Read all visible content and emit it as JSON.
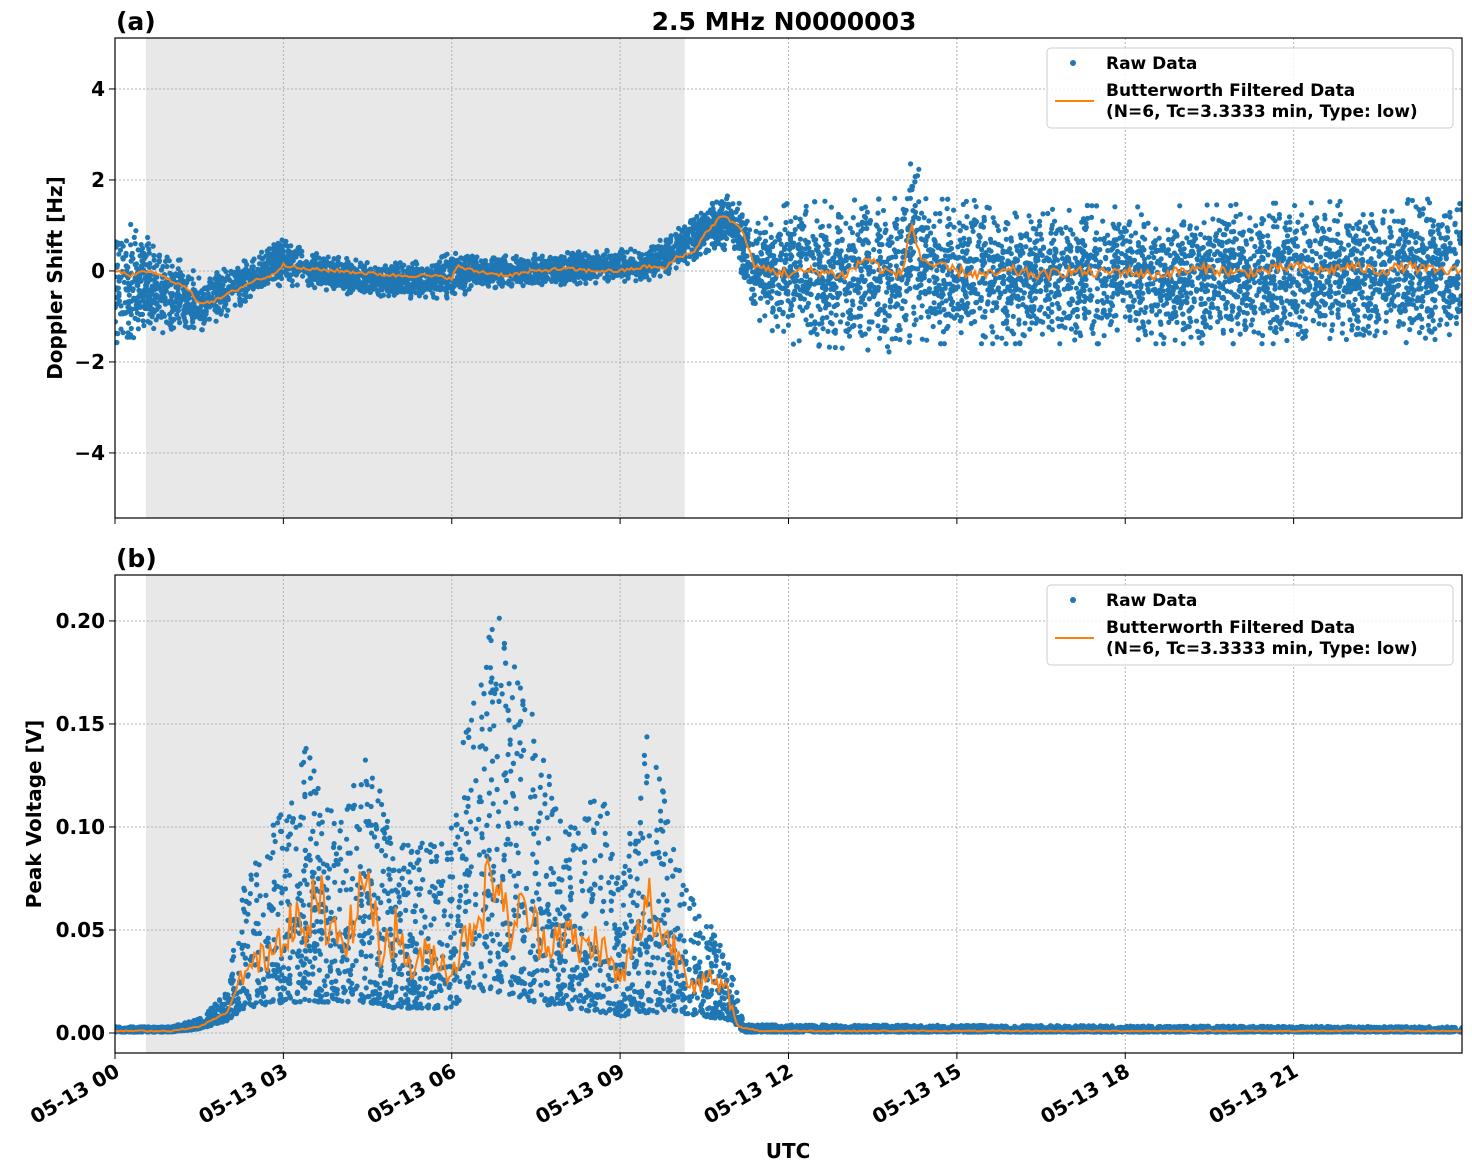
{
  "title": "2.5 MHz N0000003",
  "chart_data": [
    {
      "type": "scatter",
      "panel_label": "(a)",
      "ylabel": "Doppler Shift [Hz]",
      "xlabel": "",
      "xlim_hours_utc": [
        0,
        24
      ],
      "ylim": [
        -5.43,
        5.12
      ],
      "yticks": [
        4,
        2,
        0,
        -2,
        -4
      ],
      "ytick_labels": [
        "4",
        "2",
        "0",
        "−2",
        "−4"
      ],
      "grid": true,
      "night_shading_utc_hours": [
        0.55,
        10.15
      ],
      "legend_position": "top-right",
      "legend": [
        "Raw Data",
        "Butterworth Filtered Data",
        "(N=6, Tc=3.3333 min, Type: low)"
      ],
      "colors": {
        "raw": "#1f77b4",
        "filtered": "#ff7f0e",
        "shade": "#e8e8e8"
      },
      "filtered": [
        [
          0,
          0
        ],
        [
          0.3,
          -0.1
        ],
        [
          0.6,
          0.0
        ],
        [
          1.0,
          -0.2
        ],
        [
          1.3,
          -0.4
        ],
        [
          1.5,
          -0.7
        ],
        [
          1.8,
          -0.65
        ],
        [
          2.1,
          -0.45
        ],
        [
          2.5,
          -0.2
        ],
        [
          2.8,
          -0.1
        ],
        [
          3.0,
          0.15
        ],
        [
          3.3,
          0.05
        ],
        [
          4.0,
          0.0
        ],
        [
          4.5,
          -0.05
        ],
        [
          5.0,
          -0.1
        ],
        [
          5.5,
          -0.1
        ],
        [
          6.0,
          -0.15
        ],
        [
          6.1,
          0.1
        ],
        [
          6.4,
          0.0
        ],
        [
          7.0,
          -0.1
        ],
        [
          7.5,
          0.0
        ],
        [
          8.0,
          0.05
        ],
        [
          8.5,
          0.0
        ],
        [
          9.0,
          0.0
        ],
        [
          9.5,
          0.1
        ],
        [
          9.8,
          0.05
        ],
        [
          10.0,
          0.3
        ],
        [
          10.3,
          0.4
        ],
        [
          10.5,
          0.8
        ],
        [
          10.8,
          1.2
        ],
        [
          11.0,
          1.1
        ],
        [
          11.1,
          1.0
        ],
        [
          11.2,
          0.8
        ],
        [
          11.4,
          0.1
        ],
        [
          11.7,
          0.0
        ],
        [
          12.0,
          -0.05
        ],
        [
          12.5,
          0.0
        ],
        [
          13.0,
          -0.1
        ],
        [
          13.4,
          0.3
        ],
        [
          13.7,
          0.0
        ],
        [
          14.0,
          -0.1
        ],
        [
          14.2,
          1.0
        ],
        [
          14.35,
          0.3
        ],
        [
          14.6,
          0.1
        ],
        [
          15.0,
          0.0
        ],
        [
          15.5,
          -0.1
        ],
        [
          16.0,
          0.0
        ],
        [
          16.5,
          -0.1
        ],
        [
          17.0,
          0.0
        ],
        [
          17.5,
          -0.05
        ],
        [
          18.0,
          0.0
        ],
        [
          18.5,
          -0.1
        ],
        [
          19.0,
          0.0
        ],
        [
          19.5,
          0.05
        ],
        [
          20.0,
          -0.05
        ],
        [
          20.5,
          0.0
        ],
        [
          21.0,
          0.1
        ],
        [
          21.5,
          0.0
        ],
        [
          22.0,
          0.1
        ],
        [
          22.5,
          0.0
        ],
        [
          23.0,
          0.1
        ],
        [
          23.5,
          0.0
        ],
        [
          24.0,
          0.0
        ]
      ],
      "raw_envelope": [
        [
          0,
          -1.8,
          1.3
        ],
        [
          0.5,
          -1.3,
          0.8
        ],
        [
          1.0,
          -1.5,
          0.4
        ],
        [
          1.5,
          -1.4,
          -0.1
        ],
        [
          2.0,
          -1.0,
          0.1
        ],
        [
          2.5,
          -0.5,
          0.3
        ],
        [
          3.0,
          -0.3,
          0.8
        ],
        [
          3.5,
          -0.4,
          0.4
        ],
        [
          4.5,
          -0.6,
          0.2
        ],
        [
          5.5,
          -0.6,
          0.2
        ],
        [
          6.0,
          -0.6,
          0.4
        ],
        [
          6.5,
          -0.4,
          0.3
        ],
        [
          8.0,
          -0.3,
          0.4
        ],
        [
          9.5,
          -0.2,
          0.5
        ],
        [
          10.0,
          0.0,
          0.9
        ],
        [
          10.5,
          0.4,
          1.4
        ],
        [
          11.0,
          0.5,
          1.7
        ],
        [
          11.4,
          -1.0,
          1.0
        ],
        [
          12.0,
          -1.6,
          1.5
        ],
        [
          14.0,
          -1.8,
          1.6
        ],
        [
          14.2,
          -1.5,
          2.8
        ],
        [
          14.5,
          -1.6,
          1.6
        ],
        [
          18.0,
          -1.6,
          1.4
        ],
        [
          24.0,
          -1.6,
          1.6
        ]
      ]
    },
    {
      "type": "scatter",
      "panel_label": "(b)",
      "ylabel": "Peak Voltage [V]",
      "xlabel": "UTC",
      "xlim_hours_utc": [
        0,
        24
      ],
      "ylim": [
        -0.0097,
        0.2223
      ],
      "yticks": [
        0.2,
        0.15,
        0.1,
        0.05,
        0.0
      ],
      "ytick_labels": [
        "0.20",
        "0.15",
        "0.10",
        "0.05",
        "0.00"
      ],
      "xtick_labels": [
        "05-13 00",
        "05-13 03",
        "05-13 06",
        "05-13 09",
        "05-13 12",
        "05-13 15",
        "05-13 18",
        "05-13 21"
      ],
      "xticks_hours": [
        0,
        3,
        6,
        9,
        12,
        15,
        18,
        21
      ],
      "grid": true,
      "night_shading_utc_hours": [
        0.55,
        10.15
      ],
      "legend_position": "top-right",
      "legend": [
        "Raw Data",
        "Butterworth Filtered Data",
        "(N=6, Tc=3.3333 min, Type: low)"
      ],
      "colors": {
        "raw": "#1f77b4",
        "filtered": "#ff7f0e",
        "shade": "#e8e8e8"
      },
      "filtered": [
        [
          0,
          0.001
        ],
        [
          1.0,
          0.001
        ],
        [
          1.5,
          0.003
        ],
        [
          2.0,
          0.01
        ],
        [
          2.3,
          0.03
        ],
        [
          2.6,
          0.035
        ],
        [
          3.0,
          0.05
        ],
        [
          3.2,
          0.06
        ],
        [
          3.4,
          0.04
        ],
        [
          3.6,
          0.075
        ],
        [
          3.8,
          0.045
        ],
        [
          4.2,
          0.05
        ],
        [
          4.5,
          0.08
        ],
        [
          4.7,
          0.04
        ],
        [
          5.0,
          0.05
        ],
        [
          5.3,
          0.03
        ],
        [
          5.6,
          0.04
        ],
        [
          6.0,
          0.03
        ],
        [
          6.3,
          0.05
        ],
        [
          6.5,
          0.06
        ],
        [
          6.8,
          0.08
        ],
        [
          7.0,
          0.05
        ],
        [
          7.3,
          0.06
        ],
        [
          7.6,
          0.045
        ],
        [
          8.0,
          0.05
        ],
        [
          8.3,
          0.04
        ],
        [
          8.6,
          0.045
        ],
        [
          9.0,
          0.025
        ],
        [
          9.3,
          0.045
        ],
        [
          9.5,
          0.065
        ],
        [
          9.7,
          0.05
        ],
        [
          10.0,
          0.04
        ],
        [
          10.3,
          0.025
        ],
        [
          10.6,
          0.025
        ],
        [
          10.9,
          0.02
        ],
        [
          11.1,
          0.003
        ],
        [
          11.5,
          0.001
        ],
        [
          24.0,
          0.001
        ]
      ],
      "raw_envelope": [
        [
          0,
          0.0005,
          0.003
        ],
        [
          1.0,
          0.0005,
          0.003
        ],
        [
          1.5,
          0.002,
          0.007
        ],
        [
          2.0,
          0.006,
          0.02
        ],
        [
          2.3,
          0.012,
          0.075
        ],
        [
          3.0,
          0.015,
          0.11
        ],
        [
          3.4,
          0.015,
          0.14
        ],
        [
          4.0,
          0.015,
          0.1
        ],
        [
          4.5,
          0.015,
          0.14
        ],
        [
          5.0,
          0.012,
          0.09
        ],
        [
          6.0,
          0.012,
          0.1
        ],
        [
          6.3,
          0.02,
          0.16
        ],
        [
          6.8,
          0.02,
          0.21
        ],
        [
          7.5,
          0.015,
          0.15
        ],
        [
          8.0,
          0.012,
          0.1
        ],
        [
          8.7,
          0.01,
          0.12
        ],
        [
          9.0,
          0.008,
          0.07
        ],
        [
          9.5,
          0.01,
          0.15
        ],
        [
          10.0,
          0.01,
          0.09
        ],
        [
          10.5,
          0.008,
          0.06
        ],
        [
          11.0,
          0.006,
          0.03
        ],
        [
          11.2,
          0.0005,
          0.004
        ],
        [
          24.0,
          0.0005,
          0.003
        ]
      ]
    }
  ]
}
